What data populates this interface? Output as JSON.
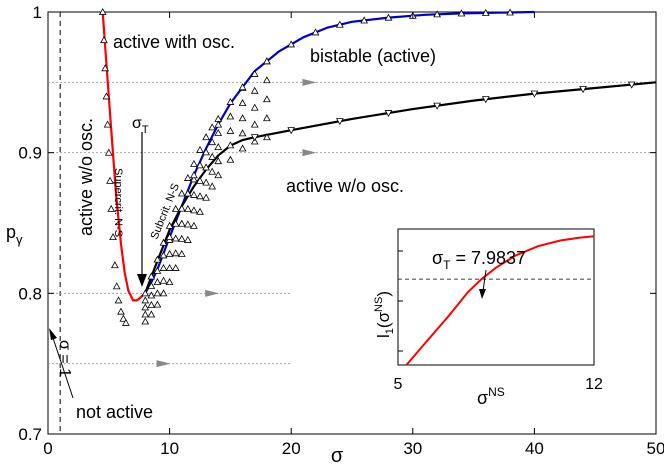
{
  "chart_data": [
    {
      "type": "line",
      "xlabel": "σ",
      "ylabel_main": "p",
      "ylabel_sub": "γ",
      "xlim": [
        0,
        50
      ],
      "ylim": [
        0.7,
        1.0
      ],
      "xticks": [
        0,
        10,
        20,
        30,
        40,
        50
      ],
      "yticks": [
        0.7,
        0.8,
        0.9,
        1.0
      ],
      "xtick_labels": [
        "0",
        "10",
        "20",
        "30",
        "40",
        "50"
      ],
      "ytick_labels": [
        "0.7",
        "0.8",
        "0.9",
        "1"
      ],
      "grid": false,
      "series": [
        {
          "id": "supercritical",
          "color": "#ff0000",
          "x": [
            4.5,
            4.7,
            5.0,
            5.3,
            5.6,
            6.0,
            6.3,
            6.6,
            7.0,
            7.3,
            7.6,
            7.9837
          ],
          "y": [
            1.0,
            0.975,
            0.94,
            0.905,
            0.87,
            0.835,
            0.815,
            0.802,
            0.795,
            0.795,
            0.797,
            0.8
          ]
        },
        {
          "id": "subcritical",
          "color": "#0000cc",
          "x": [
            7.9837,
            8.5,
            9.0,
            10.0,
            11.0,
            12.0,
            13.0,
            14.0,
            15.0,
            17.0,
            19.0,
            21.0,
            23.0,
            25.0,
            28.0,
            31.0,
            34.0,
            37.0,
            40.0
          ],
          "y": [
            0.8,
            0.808,
            0.817,
            0.84,
            0.862,
            0.884,
            0.903,
            0.92,
            0.935,
            0.958,
            0.972,
            0.982,
            0.989,
            0.993,
            0.996,
            0.998,
            0.999,
            0.9995,
            1.0
          ]
        },
        {
          "id": "lower-branch",
          "color": "#000000",
          "x": [
            7.9837,
            9.0,
            10.0,
            11.0,
            12.0,
            13.0,
            14.0,
            15.0,
            16.0,
            17.0,
            20.0,
            25.0,
            30.0,
            35.0,
            40.0,
            45.0,
            50.0
          ],
          "y": [
            0.8,
            0.823,
            0.845,
            0.862,
            0.876,
            0.888,
            0.898,
            0.905,
            0.909,
            0.911,
            0.916,
            0.924,
            0.931,
            0.937,
            0.942,
            0.946,
            0.95
          ]
        }
      ],
      "markers_up": {
        "x": [
          4.5,
          4.6,
          4.7,
          4.8,
          4.9,
          5.0,
          5.1,
          5.2,
          5.35,
          5.5,
          5.65,
          5.8,
          6.0,
          6.2,
          6.4
        ],
        "y": [
          1.0,
          0.98,
          0.96,
          0.94,
          0.92,
          0.9,
          0.88,
          0.86,
          0.84,
          0.82,
          0.805,
          0.795,
          0.787,
          0.782,
          0.779
        ]
      },
      "markers_down_band": {
        "x": [
          8.0,
          8.5,
          9.0,
          9.5,
          10.0,
          10.5,
          11.0,
          11.5,
          12.0,
          12.5,
          13.0,
          13.5,
          14.0,
          15.0,
          16.0,
          17.0,
          18.0
        ],
        "y_low": [
          0.78,
          0.785,
          0.792,
          0.8,
          0.808,
          0.818,
          0.828,
          0.838,
          0.848,
          0.858,
          0.868,
          0.876,
          0.884,
          0.895,
          0.903,
          0.908,
          0.911
        ],
        "y_high": [
          0.8,
          0.812,
          0.824,
          0.836,
          0.848,
          0.86,
          0.871,
          0.882,
          0.892,
          0.902,
          0.911,
          0.918,
          0.924,
          0.936,
          0.946,
          0.956,
          0.965
        ]
      },
      "markers_on_curves": {
        "subcritical_x": [
          10,
          12,
          14,
          16,
          18,
          20,
          22,
          24,
          26,
          28,
          30,
          32,
          34,
          36,
          38
        ],
        "lower_x": [
          17,
          20,
          24,
          28,
          32,
          36,
          40,
          44,
          48
        ]
      },
      "guides": {
        "vertical_dashed_x": 1,
        "horizontal_dotted": [
          {
            "y": 0.95,
            "x_end": 50,
            "arrow_x": 21.5
          },
          {
            "y": 0.9,
            "x_end": 50,
            "arrow_x": 21.5
          },
          {
            "y": 0.8,
            "x_end": 20,
            "arrow_x": 13.5
          },
          {
            "y": 0.75,
            "x_end": 20,
            "arrow_x": 9.5
          }
        ]
      },
      "annotations": {
        "active_with_osc": "active with osc.",
        "bistable": "bistable (active)",
        "active_wo_osc_right": "active w/o osc.",
        "active_wo_osc_left": "active w/o osc.",
        "supercrit": "Supercrit. N-S",
        "subcrit": "Subcrit. N-S",
        "sigma_T_main": "σ",
        "sigma_T_sub": "T",
        "sigma_eq_1": "σ = 1",
        "not_active": "not active"
      }
    },
    {
      "type": "line",
      "inset": true,
      "xlim": [
        5,
        12
      ],
      "xticks": [
        5,
        12
      ],
      "xtick_labels": [
        "5",
        "12"
      ],
      "xlabel_main": "σ",
      "xlabel_sup": "NS",
      "ylabel": "l1(σNS)",
      "zero_line": true,
      "series": [
        {
          "id": "l1",
          "color": "#ff0000",
          "x": [
            5.3,
            6.0,
            6.8,
            7.5,
            7.9837,
            8.5,
            9.2,
            10.0,
            10.8,
            11.5,
            12.0
          ],
          "y": [
            -0.0605,
            -0.044,
            -0.026,
            -0.009,
            0.0,
            0.008,
            0.0165,
            0.023,
            0.027,
            0.029,
            0.03
          ]
        }
      ],
      "ylim": [
        -0.06,
        0.035
      ],
      "annotation": "σ",
      "annotation_sub": "T",
      "annotation_value": " = 7.9837"
    }
  ]
}
